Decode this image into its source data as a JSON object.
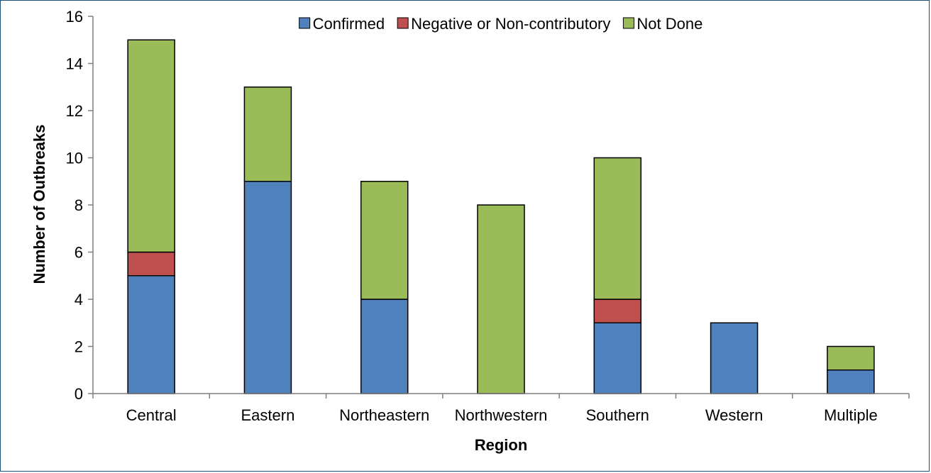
{
  "chart_data": {
    "type": "bar",
    "stacked": true,
    "categories": [
      "Central",
      "Eastern",
      "Northeastern",
      "Northwestern",
      "Southern",
      "Western",
      "Multiple"
    ],
    "series": [
      {
        "name": "Confirmed",
        "color": "#4f81bd",
        "values": [
          5,
          9,
          4,
          0,
          3,
          3,
          1
        ]
      },
      {
        "name": "Negative or Non-contributory",
        "color": "#c0504d",
        "values": [
          1,
          0,
          0,
          0,
          1,
          0,
          0
        ]
      },
      {
        "name": "Not Done",
        "color": "#9bbb59",
        "values": [
          9,
          4,
          5,
          8,
          6,
          0,
          1
        ]
      }
    ],
    "xlabel": "Region",
    "ylabel": "Number of Outbreaks",
    "ylim": [
      0,
      16
    ],
    "yticks": [
      0,
      2,
      4,
      6,
      8,
      10,
      12,
      14,
      16
    ],
    "grid": false,
    "legend_position": "top"
  }
}
